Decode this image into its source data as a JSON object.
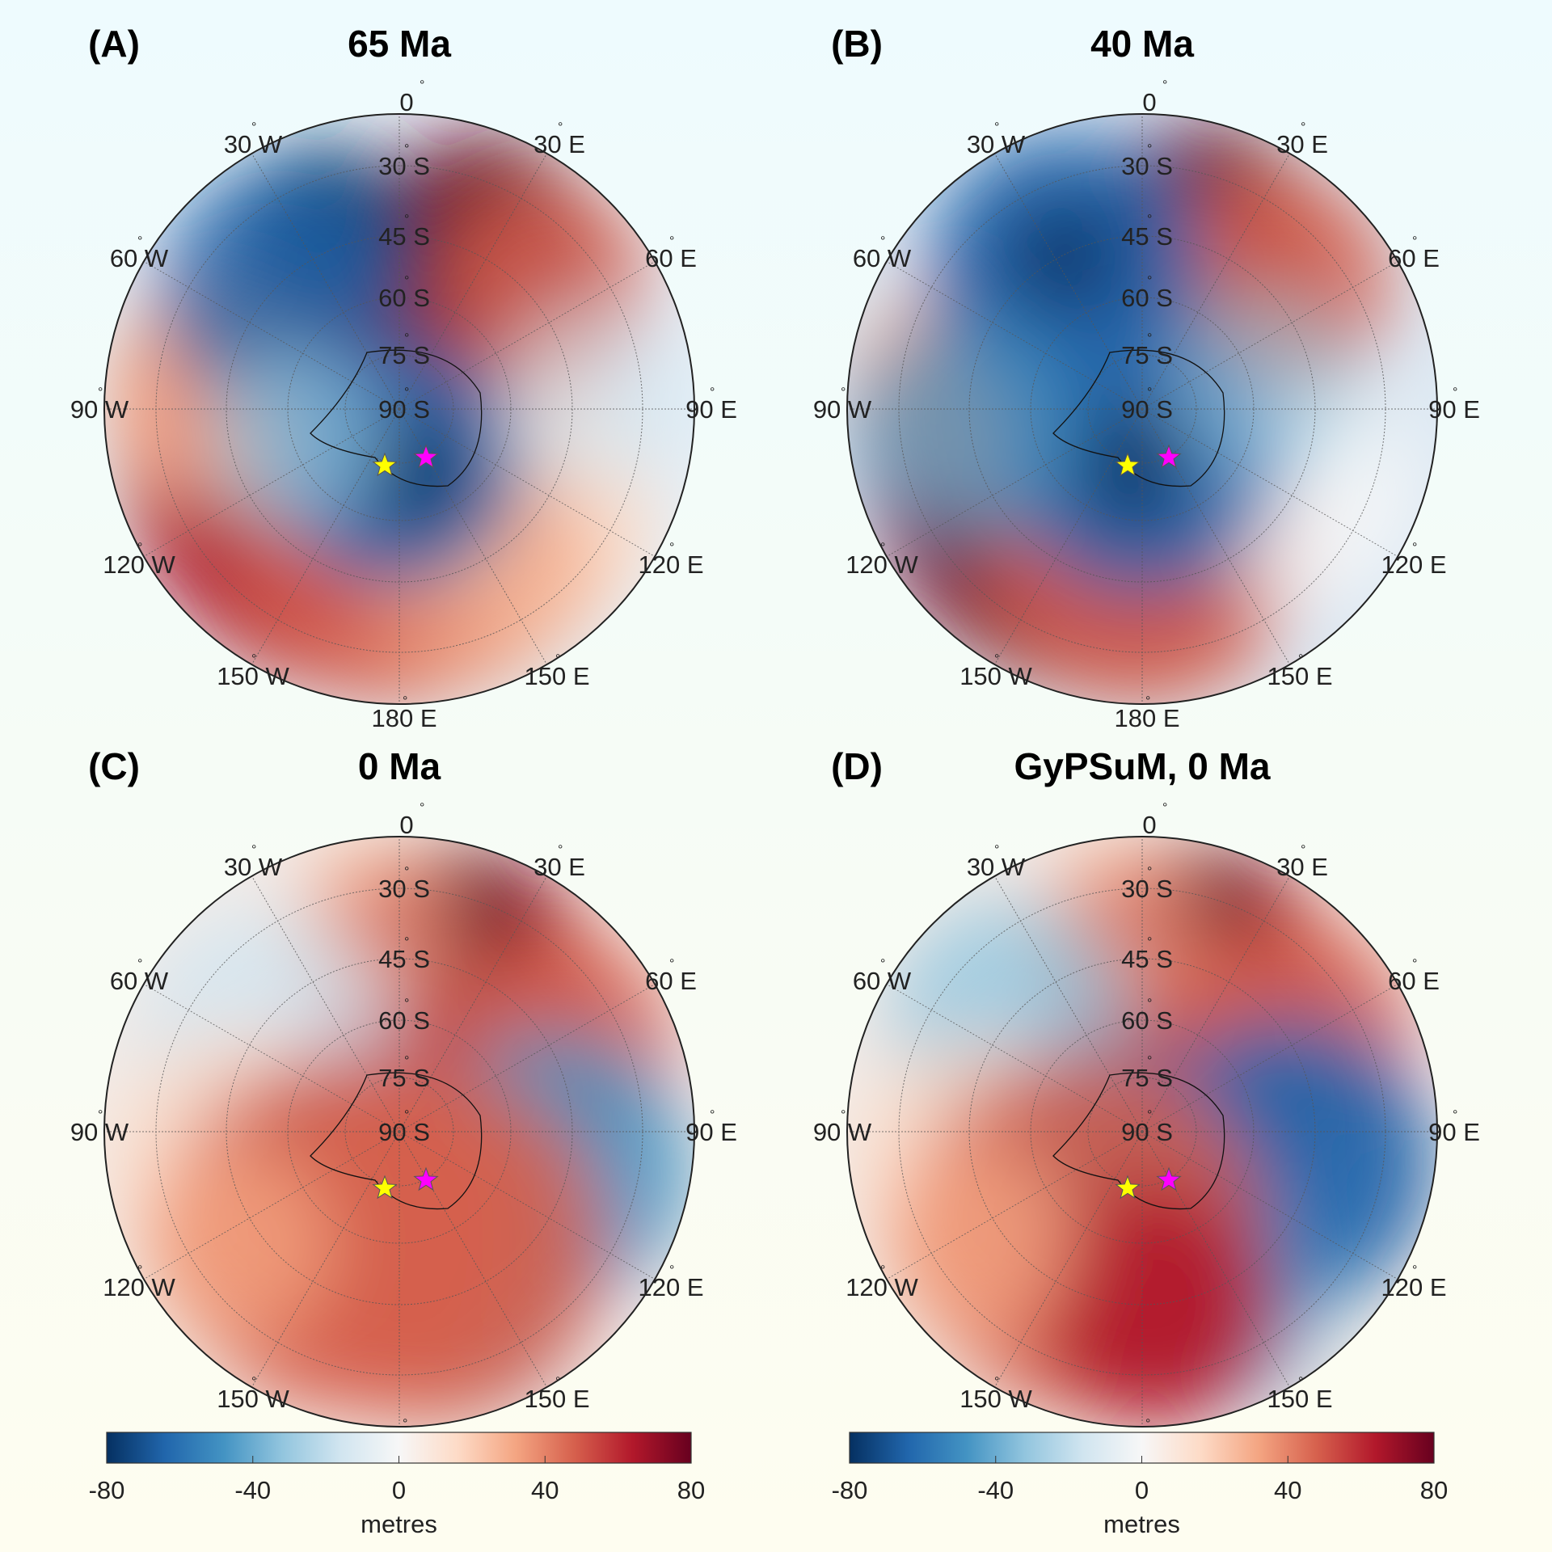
{
  "panels": [
    {
      "letter": "(A)",
      "title": "65 Ma"
    },
    {
      "letter": "(B)",
      "title": "40 Ma"
    },
    {
      "letter": "(C)",
      "title": "0 Ma"
    },
    {
      "letter": "(D)",
      "title": "GyPSuM, 0 Ma"
    }
  ],
  "longitude_labels": [
    "0",
    "30  E",
    "60  E",
    "90  E",
    "120  E",
    "150  E",
    "180  E",
    "150  W",
    "120  W",
    "90  W",
    "60  W",
    "30  W"
  ],
  "latitude_labels": [
    "30  S",
    "45  S",
    "60  S",
    "75  S",
    "90  S"
  ],
  "degree_symbol": "°",
  "markers": [
    {
      "name": "yellow-star",
      "color": "#ffff00"
    },
    {
      "name": "magenta-star",
      "color": "#ff00ff"
    }
  ],
  "colorbar": {
    "ticks": [
      "-80",
      "-40",
      "0",
      "40",
      "80"
    ],
    "label": "metres",
    "range": [
      -80,
      80
    ],
    "colormap": [
      "#053061",
      "#2166ac",
      "#4393c3",
      "#92c5de",
      "#d1e5f0",
      "#f7f7f7",
      "#fddbc7",
      "#f4a582",
      "#d6604d",
      "#b2182b",
      "#67001f"
    ]
  }
}
